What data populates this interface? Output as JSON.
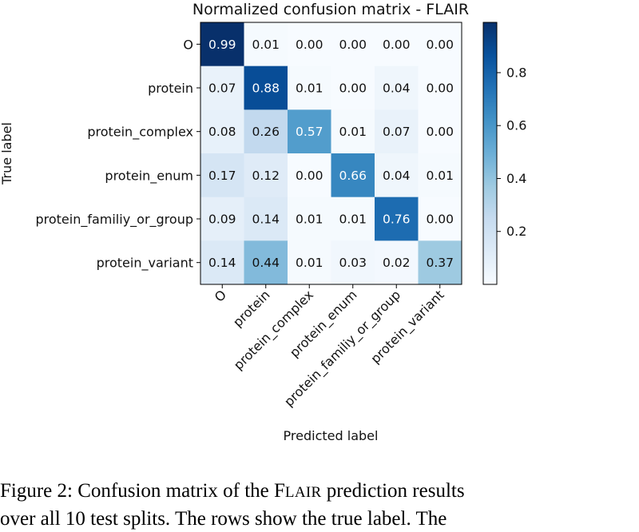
{
  "chart_data": {
    "type": "heatmap",
    "title": "Normalized confusion matrix - FLAIR",
    "xlabel": "Predicted label",
    "ylabel": "True label",
    "rows": [
      "O",
      "protein",
      "protein_complex",
      "protein_enum",
      "protein_familiy_or_group",
      "protein_variant"
    ],
    "columns": [
      "O",
      "protein",
      "protein_complex",
      "protein_enum",
      "protein_familiy_or_group",
      "protein_variant"
    ],
    "values": [
      [
        0.99,
        0.01,
        0.0,
        0.0,
        0.0,
        0.0
      ],
      [
        0.07,
        0.88,
        0.01,
        0.0,
        0.04,
        0.0
      ],
      [
        0.08,
        0.26,
        0.57,
        0.01,
        0.07,
        0.0
      ],
      [
        0.17,
        0.12,
        0.0,
        0.66,
        0.04,
        0.01
      ],
      [
        0.09,
        0.14,
        0.01,
        0.01,
        0.76,
        0.0
      ],
      [
        0.14,
        0.44,
        0.01,
        0.03,
        0.02,
        0.37
      ]
    ],
    "colorbar": {
      "ticks": [
        "0.8",
        "0.6",
        "0.4",
        "0.2"
      ],
      "tick_values": [
        0.8,
        0.6,
        0.4,
        0.2
      ],
      "range": [
        0.0,
        0.99
      ],
      "colormap": "Blues"
    },
    "colors": {
      "low": "#f7fbff",
      "mid": "#6baed6",
      "high": "#08306b",
      "text_dark": "#111111",
      "text_light": "#ffffff"
    }
  },
  "caption": {
    "line1_prefix": "Figure 2: Confusion matrix of the F",
    "line1_smallcaps": "LAIR",
    "line1_suffix": " prediction results",
    "line2": "over all 10 test splits. The rows show the true label. The"
  }
}
